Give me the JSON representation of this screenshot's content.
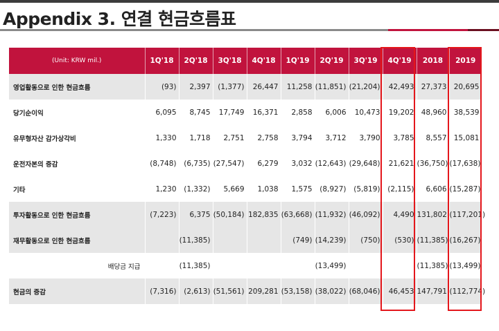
{
  "title": "Appendix 3. 연결 현금흐름표",
  "table": {
    "unit_label": "(Unit: KRW mil.)",
    "columns": [
      "1Q'18",
      "2Q'18",
      "3Q'18",
      "4Q'18",
      "1Q'19",
      "2Q'19",
      "3Q'19",
      "4Q'19",
      "2018",
      "2019"
    ],
    "rows": [
      {
        "label": "영업활동으로 인한 현금흐름",
        "cells": [
          "(93)",
          "2,397",
          "(1,377)",
          "26,447",
          "11,258",
          "(11,851)",
          "(21,204)",
          "42,493",
          "27,373",
          "20,695"
        ]
      },
      {
        "label": "당기순이익",
        "cells": [
          "6,095",
          "8,745",
          "17,749",
          "16,371",
          "2,858",
          "6,006",
          "10,473",
          "19,202",
          "48,960",
          "38,539"
        ]
      },
      {
        "label": "유무형자산 감가상각비",
        "cells": [
          "1,330",
          "1,718",
          "2,751",
          "2,758",
          "3,794",
          "3,712",
          "3,790",
          "3,785",
          "8,557",
          "15,081"
        ]
      },
      {
        "label": "운전자본의 증감",
        "cells": [
          "(8,748)",
          "(6,735)",
          "(27,547)",
          "6,279",
          "3,032",
          "(12,643)",
          "(29,648)",
          "21,621",
          "(36,750)",
          "(17,638)"
        ]
      },
      {
        "label": "기타",
        "cells": [
          "1,230",
          "(1,332)",
          "5,669",
          "1,038",
          "1,575",
          "(8,927)",
          "(5,819)",
          "(2,115)",
          "6,606",
          "(15,287)"
        ]
      },
      {
        "label": "투자활동으로 인한 현금흐름",
        "cells": [
          "(7,223)",
          "6,375",
          "(50,184)",
          "182,835",
          "(63,668)",
          "(11,932)",
          "(46,092)",
          "4,490",
          "131,802",
          "(117,201)"
        ]
      },
      {
        "label": "재무활동으로 인한 현금흐름",
        "cells": [
          "",
          "(11,385)",
          "",
          "",
          "(749)",
          "(14,239)",
          "(750)",
          "(530)",
          "(11,385)",
          "(16,267)"
        ]
      },
      {
        "label": "배당금 지급",
        "cells": [
          "",
          "(11,385)",
          "",
          "",
          "",
          "(13,499)",
          "",
          "",
          "(11,385)",
          "(13,499)"
        ]
      },
      {
        "label": "현금의 증감",
        "cells": [
          "(7,316)",
          "(2,613)",
          "(51,561)",
          "209,281",
          "(53,158)",
          "(38,022)",
          "(68,046)",
          "46,453",
          "147,791",
          "(112,774)"
        ]
      }
    ]
  },
  "colors": {
    "header_red": "#c1133d",
    "highlight_box": "#e4161b",
    "row_shade": "#e6e6e6"
  }
}
